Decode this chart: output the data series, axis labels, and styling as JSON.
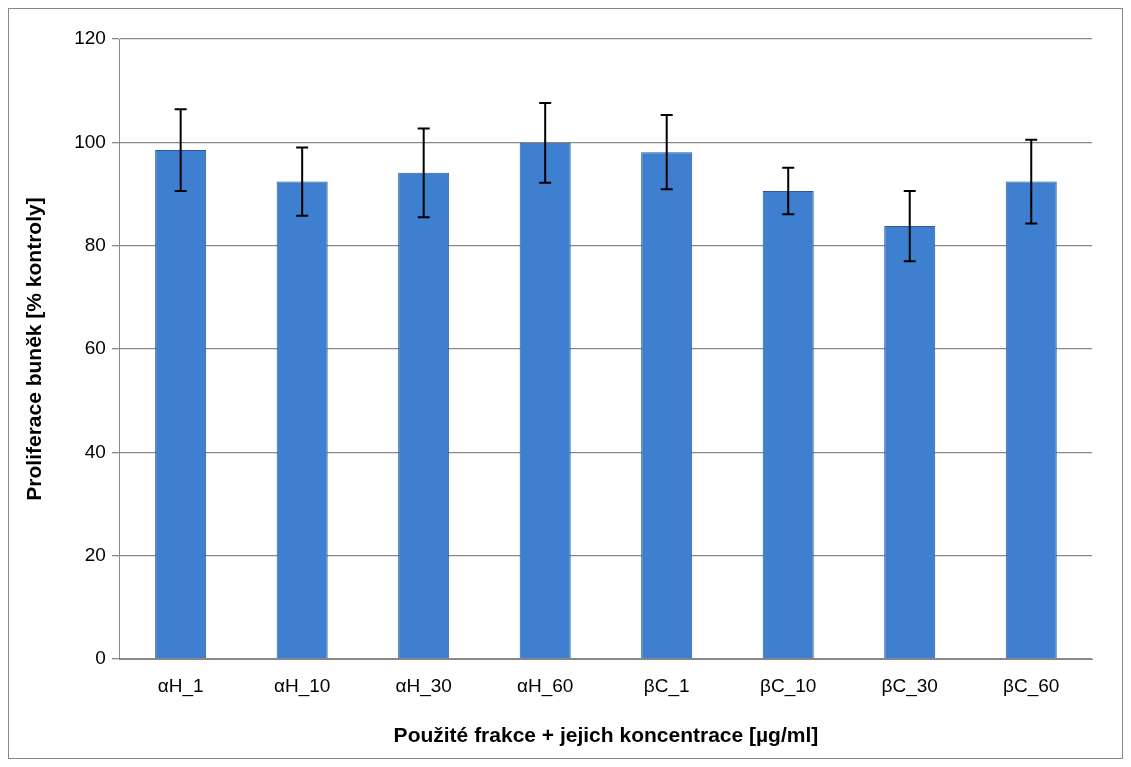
{
  "chart_data": {
    "type": "bar",
    "xlabel": "Použité frakce + jejich koncentrace [µg/ml]",
    "ylabel": "Proliferace buněk [% kontroly]",
    "categories": [
      "αH_1",
      "αH_10",
      "αH_30",
      "αH_60",
      "βC_1",
      "βC_10",
      "βC_30",
      "βC_60"
    ],
    "values": [
      98.5,
      92.4,
      94.1,
      99.9,
      98.1,
      90.6,
      83.8,
      92.4
    ],
    "errors": [
      7.9,
      6.6,
      8.6,
      7.7,
      7.2,
      4.5,
      6.8,
      8.1
    ],
    "color": "#3f7fcf",
    "ylim": [
      0,
      120
    ],
    "yticks": [
      0,
      20,
      40,
      60,
      80,
      100,
      120
    ],
    "grid": "y",
    "legend": false
  }
}
